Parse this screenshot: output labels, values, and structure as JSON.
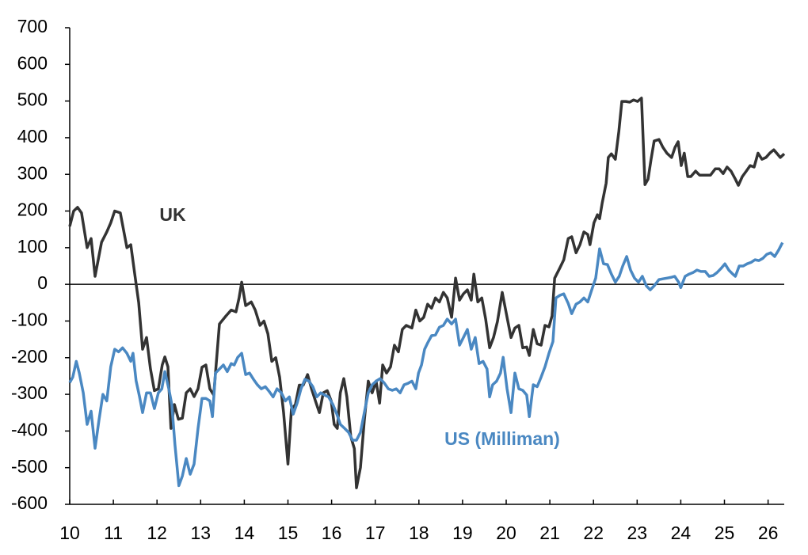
{
  "chart_data": {
    "type": "line",
    "xlim": [
      10,
      26.37
    ],
    "xticks": [
      10,
      11,
      12,
      13,
      14,
      15,
      16,
      17,
      18,
      19,
      20,
      21,
      22,
      23,
      24,
      25,
      26
    ],
    "ylim": [
      -600,
      700
    ],
    "yticks": [
      -600,
      -500,
      -400,
      -300,
      -200,
      -100,
      0,
      100,
      200,
      300,
      400,
      500,
      600,
      700
    ],
    "zero_line": true,
    "series": [
      {
        "name": "UK",
        "color": "#333333",
        "x": [
          10.0,
          10.09,
          10.18,
          10.27,
          10.4,
          10.49,
          10.58,
          10.73,
          10.85,
          10.94,
          11.03,
          11.16,
          11.31,
          11.4,
          11.49,
          11.58,
          11.67,
          11.76,
          11.85,
          11.94,
          12.03,
          12.12,
          12.18,
          12.25,
          12.32,
          12.4,
          12.49,
          12.58,
          12.67,
          12.76,
          12.85,
          12.94,
          13.03,
          13.12,
          13.21,
          13.3,
          13.43,
          13.58,
          13.7,
          13.81,
          13.88,
          13.94,
          14.03,
          14.16,
          14.25,
          14.36,
          14.45,
          14.54,
          14.63,
          14.72,
          14.81,
          14.9,
          15.0,
          15.08,
          15.17,
          15.26,
          15.35,
          15.45,
          15.54,
          15.63,
          15.72,
          15.81,
          15.9,
          15.99,
          16.06,
          16.13,
          16.2,
          16.28,
          16.35,
          16.44,
          16.52,
          16.57,
          16.66,
          16.75,
          16.84,
          16.93,
          17.02,
          17.1,
          17.17,
          17.26,
          17.35,
          17.44,
          17.53,
          17.62,
          17.71,
          17.84,
          17.93,
          18.02,
          18.11,
          18.2,
          18.29,
          18.38,
          18.47,
          18.56,
          18.65,
          18.75,
          18.84,
          18.93,
          19.02,
          19.11,
          19.2,
          19.26,
          19.35,
          19.44,
          19.53,
          19.62,
          19.71,
          19.8,
          19.91,
          20.02,
          20.11,
          20.2,
          20.29,
          20.38,
          20.47,
          20.53,
          20.62,
          20.71,
          20.8,
          20.89,
          20.98,
          21.05,
          21.11,
          21.23,
          21.32,
          21.42,
          21.5,
          21.6,
          21.69,
          21.78,
          21.87,
          21.92,
          22.01,
          22.09,
          22.14,
          22.2,
          22.29,
          22.34,
          22.41,
          22.5,
          22.58,
          22.65,
          22.74,
          22.83,
          22.92,
          23.01,
          23.1,
          23.18,
          23.25,
          23.32,
          23.39,
          23.5,
          23.59,
          23.68,
          23.79,
          23.87,
          23.94,
          24.01,
          24.08,
          24.16,
          24.23,
          24.34,
          24.43,
          24.56,
          24.68,
          24.79,
          24.88,
          24.97,
          25.06,
          25.15,
          25.25,
          25.32,
          25.41,
          25.5,
          25.59,
          25.68,
          25.77,
          25.86,
          25.95,
          26.04,
          26.13,
          26.21,
          26.28,
          26.37
        ],
        "values": [
          158,
          200,
          210,
          195,
          100,
          125,
          22,
          115,
          143,
          168,
          200,
          195,
          100,
          108,
          28,
          -50,
          -177,
          -145,
          -230,
          -290,
          -285,
          -220,
          -198,
          -225,
          -393,
          -328,
          -368,
          -365,
          -296,
          -285,
          -306,
          -285,
          -226,
          -220,
          -285,
          -302,
          -108,
          -86,
          -70,
          -75,
          -37,
          6,
          -58,
          -48,
          -70,
          -112,
          -100,
          -135,
          -210,
          -200,
          -253,
          -350,
          -490,
          -340,
          -328,
          -275,
          -275,
          -246,
          -285,
          -318,
          -350,
          -296,
          -290,
          -318,
          -382,
          -393,
          -296,
          -257,
          -307,
          -415,
          -448,
          -555,
          -500,
          -371,
          -264,
          -296,
          -264,
          -324,
          -220,
          -242,
          -225,
          -166,
          -184,
          -123,
          -112,
          -119,
          -70,
          -100,
          -90,
          -54,
          -65,
          -37,
          -48,
          -22,
          -37,
          -90,
          17,
          -43,
          -26,
          -15,
          -43,
          28,
          -48,
          -37,
          -95,
          -173,
          -145,
          -101,
          -22,
          -90,
          -145,
          -119,
          -112,
          -173,
          -171,
          -194,
          -123,
          -162,
          -166,
          -112,
          -116,
          -86,
          17,
          45,
          67,
          125,
          130,
          86,
          108,
          143,
          136,
          108,
          168,
          190,
          179,
          222,
          276,
          346,
          356,
          341,
          417,
          499,
          499,
          497,
          503,
          499,
          508,
          272,
          287,
          341,
          391,
          395,
          374,
          358,
          346,
          374,
          389,
          324,
          358,
          294,
          294,
          309,
          298,
          298,
          298,
          315,
          315,
          302,
          320,
          309,
          287,
          270,
          294,
          309,
          324,
          320,
          358,
          341,
          346,
          358,
          367,
          356,
          346,
          356
        ]
      },
      {
        "name": "US (Milliman)",
        "color": "#4a88c2",
        "x": [
          10.0,
          10.07,
          10.15,
          10.22,
          10.31,
          10.4,
          10.49,
          10.58,
          10.67,
          10.76,
          10.85,
          10.94,
          11.03,
          11.12,
          11.21,
          11.31,
          11.4,
          11.45,
          11.52,
          11.6,
          11.67,
          11.76,
          11.85,
          11.94,
          12.03,
          12.11,
          12.18,
          12.27,
          12.34,
          12.41,
          12.5,
          12.58,
          12.67,
          12.76,
          12.85,
          12.94,
          13.03,
          13.12,
          13.21,
          13.27,
          13.34,
          13.43,
          13.52,
          13.61,
          13.7,
          13.77,
          13.85,
          13.94,
          14.03,
          14.12,
          14.21,
          14.3,
          14.39,
          14.48,
          14.57,
          14.66,
          14.75,
          14.85,
          14.94,
          15.03,
          15.12,
          15.21,
          15.3,
          15.39,
          15.48,
          15.57,
          15.66,
          15.75,
          15.84,
          15.93,
          16.03,
          16.12,
          16.2,
          16.3,
          16.39,
          16.48,
          16.57,
          16.66,
          16.75,
          16.84,
          16.93,
          17.02,
          17.11,
          17.2,
          17.3,
          17.39,
          17.48,
          17.57,
          17.66,
          17.75,
          17.84,
          17.93,
          17.99,
          18.06,
          18.13,
          18.2,
          18.29,
          18.38,
          18.47,
          18.56,
          18.65,
          18.75,
          18.84,
          18.93,
          19.02,
          19.11,
          19.2,
          19.29,
          19.38,
          19.47,
          19.56,
          19.62,
          19.69,
          19.78,
          19.87,
          19.93,
          20.02,
          20.11,
          20.2,
          20.29,
          20.38,
          20.47,
          20.53,
          20.62,
          20.71,
          20.8,
          20.89,
          20.98,
          21.07,
          21.14,
          21.23,
          21.32,
          21.42,
          21.5,
          21.6,
          21.69,
          21.78,
          21.87,
          21.96,
          22.05,
          22.14,
          22.23,
          22.32,
          22.41,
          22.5,
          22.59,
          22.67,
          22.76,
          22.85,
          22.94,
          23.03,
          23.12,
          23.21,
          23.3,
          23.39,
          23.5,
          23.59,
          23.68,
          23.77,
          23.86,
          23.95,
          24.0,
          24.1,
          24.19,
          24.28,
          24.37,
          24.46,
          24.56,
          24.65,
          24.74,
          24.83,
          24.92,
          25.01,
          25.1,
          25.19,
          25.25,
          25.34,
          25.43,
          25.52,
          25.61,
          25.7,
          25.79,
          25.88,
          25.97,
          26.06,
          26.15,
          26.24,
          26.33
        ],
        "values": [
          -268,
          -253,
          -210,
          -242,
          -296,
          -382,
          -346,
          -447,
          -371,
          -300,
          -318,
          -225,
          -177,
          -184,
          -173,
          -188,
          -210,
          -188,
          -263,
          -307,
          -350,
          -296,
          -296,
          -339,
          -296,
          -285,
          -238,
          -285,
          -328,
          -436,
          -549,
          -523,
          -475,
          -518,
          -490,
          -393,
          -311,
          -311,
          -318,
          -361,
          -242,
          -231,
          -220,
          -238,
          -216,
          -220,
          -199,
          -188,
          -246,
          -242,
          -259,
          -274,
          -285,
          -279,
          -292,
          -307,
          -285,
          -296,
          -318,
          -307,
          -354,
          -324,
          -285,
          -259,
          -264,
          -279,
          -307,
          -296,
          -302,
          -307,
          -328,
          -354,
          -382,
          -393,
          -404,
          -425,
          -425,
          -404,
          -350,
          -296,
          -274,
          -264,
          -257,
          -268,
          -285,
          -289,
          -285,
          -296,
          -274,
          -270,
          -264,
          -285,
          -242,
          -220,
          -177,
          -160,
          -140,
          -138,
          -117,
          -112,
          -95,
          -108,
          -95,
          -166,
          -145,
          -123,
          -177,
          -145,
          -216,
          -210,
          -231,
          -307,
          -274,
          -264,
          -242,
          -199,
          -285,
          -350,
          -242,
          -285,
          -289,
          -302,
          -361,
          -274,
          -279,
          -253,
          -225,
          -188,
          -156,
          -37,
          -30,
          -26,
          -52,
          -80,
          -54,
          -48,
          -37,
          -48,
          -15,
          17,
          97,
          56,
          54,
          28,
          6,
          22,
          50,
          76,
          39,
          17,
          6,
          22,
          -4,
          -15,
          -4,
          13,
          15,
          17,
          19,
          22,
          6,
          -9,
          22,
          28,
          32,
          39,
          35,
          35,
          22,
          24,
          32,
          43,
          56,
          39,
          28,
          22,
          50,
          50,
          56,
          60,
          67,
          65,
          71,
          82,
          86,
          76,
          93,
          114
        ]
      }
    ]
  }
}
